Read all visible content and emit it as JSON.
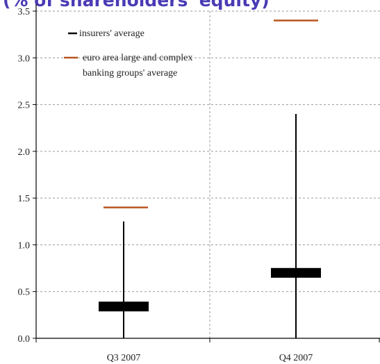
{
  "chart_data": {
    "type": "box",
    "title": "(% of shareholders' equity)",
    "xlabel": "",
    "ylabel": "",
    "ylim": [
      0,
      3.5
    ],
    "yticks": [
      "0.0",
      "0.5",
      "1.0",
      "1.5",
      "2.0",
      "2.5",
      "3.0",
      "3.5"
    ],
    "categories": [
      "Q3 2007",
      "Q4 2007"
    ],
    "grid": true,
    "legend_position": "top-left",
    "series": [
      {
        "name": "insurers' average",
        "color": "#000000",
        "values": [
          0.34,
          0.7
        ],
        "range_low": [
          0.0,
          0.0
        ],
        "range_high": [
          1.25,
          2.4
        ]
      },
      {
        "name": "euro area large and complex banking groups' average",
        "color": "#b8551f",
        "values": [
          1.4,
          3.4
        ]
      }
    ]
  }
}
